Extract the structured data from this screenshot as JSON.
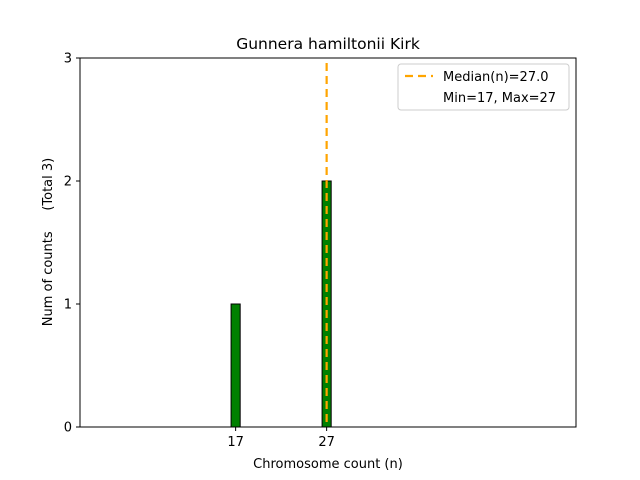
{
  "chart_data": {
    "type": "bar",
    "title": "Gunnera hamiltonii Kirk",
    "xlabel": "Chromosome count (n)",
    "ylabel": "Num of counts     (Total 3)",
    "x": [
      17,
      27
    ],
    "values": [
      1,
      2
    ],
    "xticks": [
      "17",
      "27"
    ],
    "yticks": [
      "0",
      "1",
      "2",
      "3"
    ],
    "xlim": [
      -0.1,
      54.4
    ],
    "ylim": [
      0,
      3
    ],
    "bar_color": "#008000",
    "median": 27.0,
    "median_color": "#FFA500",
    "legend": {
      "placement": "top-right",
      "entries": [
        "Median(n)=27.0",
        "Min=17, Max=27"
      ]
    },
    "grid": false
  }
}
